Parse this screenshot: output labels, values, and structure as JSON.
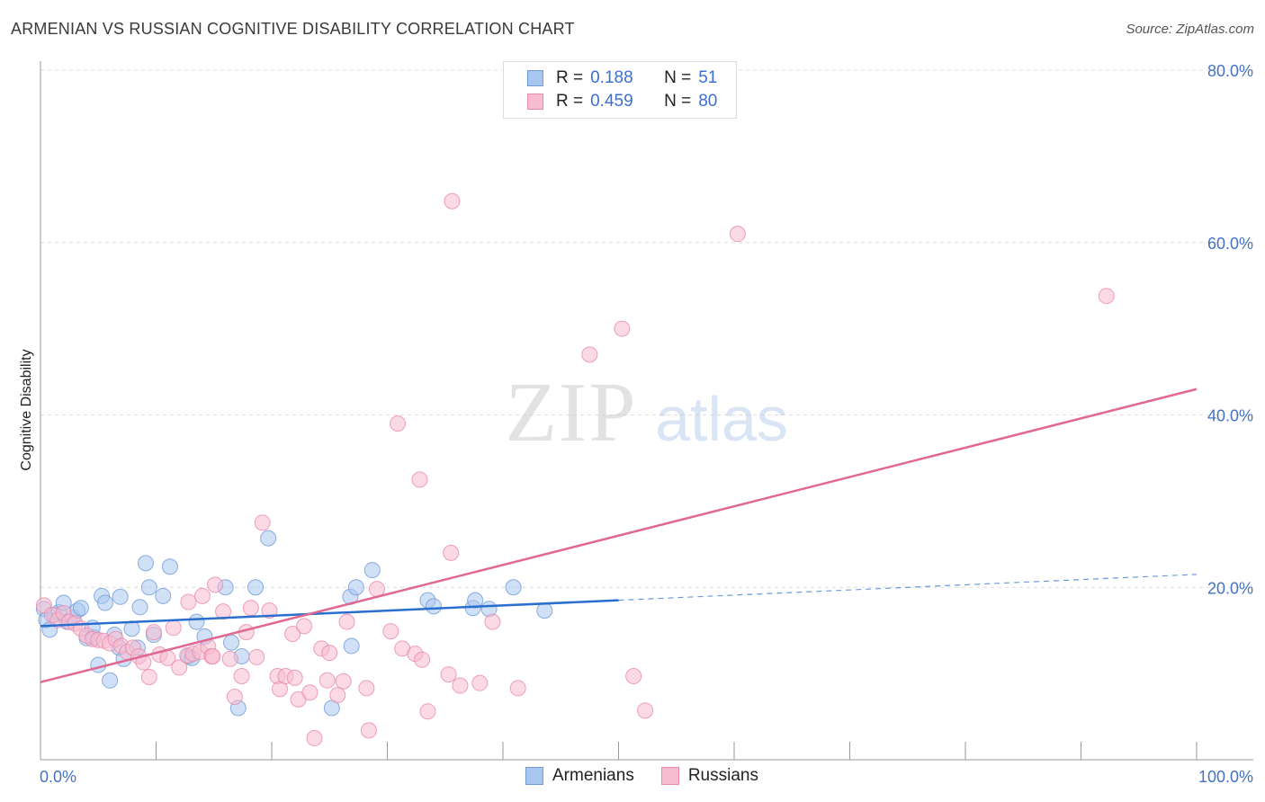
{
  "title": "ARMENIAN VS RUSSIAN COGNITIVE DISABILITY CORRELATION CHART",
  "source": "Source: ZipAtlas.com",
  "legend_top": {
    "rows": [
      {
        "r_label": "R =",
        "r_value": "0.188",
        "n_label": "N =",
        "n_value": "51"
      },
      {
        "r_label": "R =",
        "r_value": "0.459",
        "n_label": "N =",
        "n_value": "80"
      }
    ]
  },
  "legend_bottom": {
    "armenians": "Armenians",
    "russians": "Russians"
  },
  "watermark": {
    "zip": "ZIP",
    "atlas": "atlas"
  },
  "chart_data": {
    "type": "scatter",
    "title": "ARMENIAN VS RUSSIAN COGNITIVE DISABILITY CORRELATION CHART",
    "xlabel": "",
    "ylabel": "Cognitive Disability",
    "xlim": [
      0,
      100
    ],
    "ylim": [
      0,
      80
    ],
    "x_tick_labels": [
      "0.0%",
      "100.0%"
    ],
    "y_tick_labels": [
      "20.0%",
      "40.0%",
      "60.0%",
      "80.0%"
    ],
    "y_ticks": [
      20,
      40,
      60,
      80
    ],
    "grid": "horizontal dashed",
    "legend_position": "top-center",
    "colors": {
      "armenians_fill": "#a9c6ee",
      "armenians_stroke": "#6f9bd8",
      "armenians_line": "#2a6fce",
      "russians_fill": "#f7bcd0",
      "russians_stroke": "#e98aab",
      "russians_line": "#e06892",
      "tick_text": "#4472c4"
    },
    "series": [
      {
        "name": "Armenians",
        "r": 0.188,
        "n": 51,
        "trend": {
          "x0": 0,
          "y0": 15.5,
          "x1": 50,
          "y1": 18.5,
          "dashed_to_x": 100,
          "dashed_to_y": 21.5
        },
        "points": [
          [
            0.3,
            17.5
          ],
          [
            0.5,
            16.2
          ],
          [
            0.8,
            15.1
          ],
          [
            1.2,
            16.8
          ],
          [
            1.6,
            17.1
          ],
          [
            2.0,
            18.2
          ],
          [
            2.3,
            16.0
          ],
          [
            2.8,
            16.5
          ],
          [
            3.2,
            17.3
          ],
          [
            3.5,
            17.6
          ],
          [
            4.0,
            14.1
          ],
          [
            4.6,
            14.2
          ],
          [
            4.5,
            15.3
          ],
          [
            5.0,
            11.0
          ],
          [
            5.3,
            19.0
          ],
          [
            5.6,
            18.2
          ],
          [
            6.0,
            9.2
          ],
          [
            6.4,
            14.5
          ],
          [
            6.8,
            13.0
          ],
          [
            6.9,
            18.9
          ],
          [
            7.2,
            11.7
          ],
          [
            7.9,
            15.2
          ],
          [
            8.4,
            13.0
          ],
          [
            8.6,
            17.7
          ],
          [
            9.1,
            22.8
          ],
          [
            9.4,
            20.0
          ],
          [
            9.8,
            14.5
          ],
          [
            10.6,
            19.0
          ],
          [
            11.2,
            22.4
          ],
          [
            12.8,
            12.0
          ],
          [
            13.1,
            11.8
          ],
          [
            13.5,
            16.0
          ],
          [
            14.2,
            14.3
          ],
          [
            16.0,
            20.0
          ],
          [
            16.5,
            13.6
          ],
          [
            17.4,
            12.0
          ],
          [
            18.6,
            20.0
          ],
          [
            19.7,
            25.7
          ],
          [
            17.1,
            6.0
          ],
          [
            25.2,
            6.0
          ],
          [
            26.8,
            18.9
          ],
          [
            26.9,
            13.2
          ],
          [
            27.3,
            20.0
          ],
          [
            28.7,
            22.0
          ],
          [
            33.5,
            18.5
          ],
          [
            34.0,
            17.8
          ],
          [
            37.4,
            17.6
          ],
          [
            37.6,
            18.5
          ],
          [
            38.8,
            17.5
          ],
          [
            40.9,
            20.0
          ],
          [
            43.6,
            17.3
          ]
        ]
      },
      {
        "name": "Russians",
        "r": 0.459,
        "n": 80,
        "trend": {
          "x0": 0,
          "y0": 9.0,
          "x1": 100,
          "y1": 43.0
        },
        "points": [
          [
            0.3,
            17.9
          ],
          [
            1.0,
            16.8
          ],
          [
            1.5,
            16.2
          ],
          [
            2.0,
            17.0
          ],
          [
            2.5,
            16.0
          ],
          [
            3.0,
            15.8
          ],
          [
            3.5,
            15.2
          ],
          [
            4.0,
            14.4
          ],
          [
            4.5,
            14.0
          ],
          [
            5.0,
            13.9
          ],
          [
            5.5,
            13.8
          ],
          [
            6.0,
            13.5
          ],
          [
            6.5,
            14.0
          ],
          [
            7.0,
            13.2
          ],
          [
            7.5,
            12.5
          ],
          [
            8.0,
            13.0
          ],
          [
            8.5,
            12.0
          ],
          [
            8.9,
            11.3
          ],
          [
            9.4,
            9.6
          ],
          [
            9.8,
            14.8
          ],
          [
            10.3,
            12.2
          ],
          [
            11.0,
            11.8
          ],
          [
            11.5,
            15.3
          ],
          [
            12.0,
            10.7
          ],
          [
            12.7,
            12.1
          ],
          [
            12.8,
            18.3
          ],
          [
            13.2,
            12.3
          ],
          [
            13.8,
            12.5
          ],
          [
            14.0,
            19.0
          ],
          [
            14.5,
            13.1
          ],
          [
            14.8,
            12.0
          ],
          [
            15.1,
            20.3
          ],
          [
            15.8,
            17.2
          ],
          [
            16.4,
            11.7
          ],
          [
            16.8,
            7.3
          ],
          [
            17.4,
            9.7
          ],
          [
            17.8,
            14.8
          ],
          [
            18.2,
            17.6
          ],
          [
            18.7,
            11.9
          ],
          [
            19.2,
            27.5
          ],
          [
            19.8,
            17.3
          ],
          [
            20.5,
            9.7
          ],
          [
            20.7,
            8.2
          ],
          [
            21.2,
            9.7
          ],
          [
            21.8,
            14.6
          ],
          [
            22.3,
            7.0
          ],
          [
            22.8,
            15.5
          ],
          [
            23.3,
            7.8
          ],
          [
            23.7,
            2.5
          ],
          [
            24.3,
            12.9
          ],
          [
            24.8,
            9.2
          ],
          [
            25.0,
            12.4
          ],
          [
            25.7,
            7.5
          ],
          [
            26.2,
            9.1
          ],
          [
            26.5,
            16.0
          ],
          [
            28.2,
            8.3
          ],
          [
            28.4,
            3.4
          ],
          [
            29.1,
            19.8
          ],
          [
            30.3,
            14.9
          ],
          [
            30.9,
            39.0
          ],
          [
            31.3,
            12.9
          ],
          [
            32.4,
            12.3
          ],
          [
            32.8,
            32.5
          ],
          [
            33.0,
            11.6
          ],
          [
            33.5,
            5.6
          ],
          [
            35.3,
            9.9
          ],
          [
            35.5,
            24.0
          ],
          [
            35.6,
            64.8
          ],
          [
            36.3,
            8.6
          ],
          [
            38.0,
            8.9
          ],
          [
            39.1,
            16.0
          ],
          [
            41.3,
            8.3
          ],
          [
            47.5,
            47.0
          ],
          [
            50.3,
            50.0
          ],
          [
            51.3,
            9.7
          ],
          [
            52.3,
            5.7
          ],
          [
            60.3,
            61.0
          ],
          [
            92.2,
            53.8
          ],
          [
            22.0,
            9.5
          ],
          [
            14.9,
            12.0
          ]
        ]
      }
    ]
  }
}
